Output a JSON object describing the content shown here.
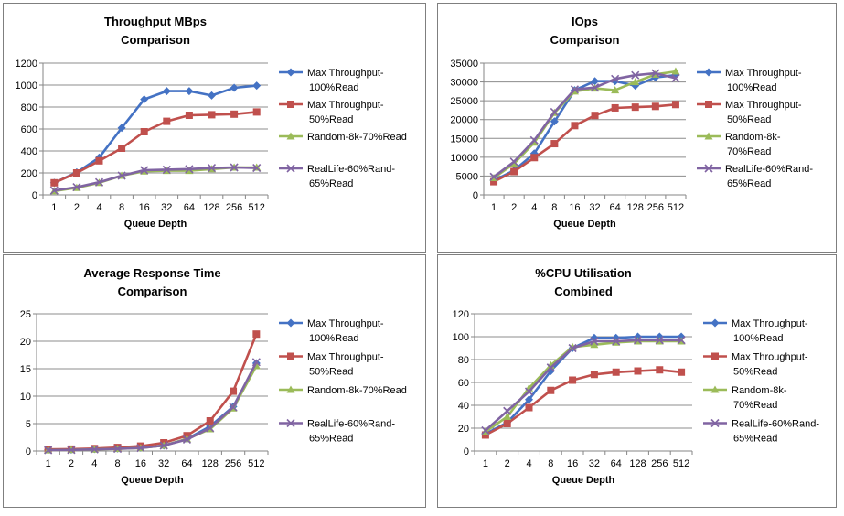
{
  "colors": {
    "series": [
      "#4472C4",
      "#C0504D",
      "#9BBB59",
      "#8064A2"
    ],
    "grid": "#8C8C8C",
    "axis": "#868686",
    "border": "#7F7F7F",
    "text": "#000000"
  },
  "chart_data": [
    {
      "type": "line",
      "title": [
        "Throughput MBps",
        "Comparison"
      ],
      "xlabel": "Queue Depth",
      "categories": [
        "1",
        "2",
        "4",
        "8",
        "16",
        "32",
        "64",
        "128",
        "256",
        "512"
      ],
      "ylim": [
        0,
        1200
      ],
      "yticks": [
        "0",
        "200",
        "400",
        "600",
        "800",
        "1000",
        "1200"
      ],
      "legend_position": "right",
      "series": [
        {
          "name": [
            "Max Throughput-",
            "100%Read"
          ],
          "marker": "diamond",
          "values": [
            110,
            205,
            340,
            610,
            870,
            945,
            945,
            905,
            975,
            995
          ]
        },
        {
          "name": [
            "Max Throughput-",
            "50%Read"
          ],
          "marker": "square",
          "values": [
            110,
            200,
            310,
            425,
            575,
            670,
            725,
            730,
            735,
            755
          ]
        },
        {
          "name": [
            "Random-8k-70%Read"
          ],
          "marker": "triangle",
          "values": [
            35,
            65,
            110,
            175,
            215,
            220,
            220,
            235,
            250,
            250
          ]
        },
        {
          "name": [
            "RealLife-60%Rand-",
            "65%Read"
          ],
          "marker": "x",
          "values": [
            40,
            70,
            115,
            175,
            225,
            230,
            235,
            245,
            250,
            245
          ]
        }
      ]
    },
    {
      "type": "line",
      "title": [
        "IOps",
        "Comparison"
      ],
      "xlabel": "Queue Depth",
      "categories": [
        "1",
        "2",
        "4",
        "8",
        "16",
        "32",
        "64",
        "128",
        "256",
        "512"
      ],
      "ylim": [
        0,
        35000
      ],
      "yticks": [
        "0",
        "5000",
        "10000",
        "15000",
        "20000",
        "25000",
        "30000",
        "35000"
      ],
      "legend_position": "right",
      "series": [
        {
          "name": [
            "Max Throughput-",
            "100%Read"
          ],
          "marker": "diamond",
          "values": [
            3800,
            6500,
            11000,
            19500,
            27800,
            30200,
            30200,
            29000,
            31200,
            31800
          ]
        },
        {
          "name": [
            "Max Throughput-",
            "50%Read"
          ],
          "marker": "square",
          "values": [
            3500,
            6200,
            9900,
            13600,
            18400,
            21100,
            23100,
            23300,
            23500,
            24000
          ]
        },
        {
          "name": [
            "Random-8k-",
            "70%Read"
          ],
          "marker": "triangle",
          "values": [
            4500,
            8300,
            13900,
            21800,
            27500,
            28300,
            27800,
            30000,
            32000,
            32800
          ]
        },
        {
          "name": [
            "RealLife-60%Rand-",
            "65%Read"
          ],
          "marker": "x",
          "values": [
            4800,
            8800,
            14500,
            22000,
            28000,
            28500,
            30800,
            31800,
            32300,
            31000
          ]
        }
      ]
    },
    {
      "type": "line",
      "title": [
        "Average Response Time",
        "Comparison"
      ],
      "xlabel": "Queue Depth",
      "categories": [
        "1",
        "2",
        "4",
        "8",
        "16",
        "32",
        "64",
        "128",
        "256",
        "512"
      ],
      "ylim": [
        0,
        25
      ],
      "yticks": [
        "0",
        "5",
        "10",
        "15",
        "20",
        "25"
      ],
      "legend_position": "right",
      "series": [
        {
          "name": [
            "Max Throughput-",
            "100%Read"
          ],
          "marker": "diamond",
          "values": [
            0.2,
            0.25,
            0.35,
            0.45,
            0.6,
            1.0,
            2.2,
            4.5,
            8.1,
            16.0
          ]
        },
        {
          "name": [
            "Max Throughput-",
            "50%Read"
          ],
          "marker": "square",
          "values": [
            0.3,
            0.35,
            0.45,
            0.65,
            0.9,
            1.5,
            2.8,
            5.5,
            10.9,
            21.3
          ]
        },
        {
          "name": [
            "Random-8k-70%Read"
          ],
          "marker": "triangle",
          "values": [
            0.15,
            0.2,
            0.3,
            0.4,
            0.55,
            1.0,
            2.2,
            4.0,
            7.8,
            15.5
          ]
        },
        {
          "name": [
            "RealLife-60%Rand-",
            "65%Read"
          ],
          "marker": "x",
          "values": [
            0.15,
            0.2,
            0.3,
            0.4,
            0.55,
            1.0,
            2.1,
            4.2,
            8.0,
            16.2
          ]
        }
      ]
    },
    {
      "type": "line",
      "title": [
        "%CPU Utilisation",
        "Combined"
      ],
      "xlabel": "Queue Depth",
      "categories": [
        "1",
        "2",
        "4",
        "8",
        "16",
        "32",
        "64",
        "128",
        "256",
        "512"
      ],
      "ylim": [
        0,
        120
      ],
      "yticks": [
        "0",
        "20",
        "40",
        "60",
        "80",
        "100",
        "120"
      ],
      "legend_position": "right",
      "series": [
        {
          "name": [
            "Max Throughput-",
            "100%Read"
          ],
          "marker": "diamond",
          "values": [
            15,
            25,
            45,
            70,
            90,
            99,
            99,
            100,
            100,
            100
          ]
        },
        {
          "name": [
            "Max Throughput-",
            "50%Read"
          ],
          "marker": "square",
          "values": [
            14,
            24,
            38,
            53,
            62,
            67,
            69,
            70,
            71,
            69
          ]
        },
        {
          "name": [
            "Random-8k-",
            "70%Read"
          ],
          "marker": "triangle",
          "values": [
            17,
            30,
            55,
            75,
            91,
            93,
            95,
            96,
            96,
            96
          ]
        },
        {
          "name": [
            "RealLife-60%Rand-",
            "65%Read"
          ],
          "marker": "x",
          "values": [
            18,
            35,
            52,
            73,
            90,
            96,
            96,
            97,
            97,
            97
          ]
        }
      ]
    }
  ]
}
